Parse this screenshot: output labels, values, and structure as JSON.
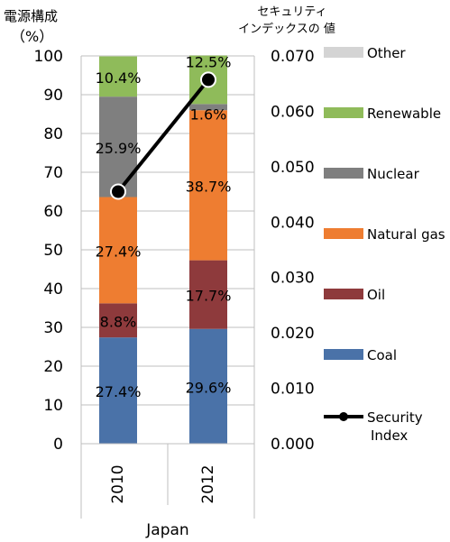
{
  "chart_data": {
    "type": "bar",
    "stacked": true,
    "categories": [
      "2010",
      "2012"
    ],
    "group_label": "Japan",
    "left_axis": {
      "title_line1": "電源構成",
      "title_line2": "（%）",
      "ylim": [
        0,
        100
      ],
      "ticks": [
        "0",
        "10",
        "20",
        "30",
        "40",
        "50",
        "60",
        "70",
        "80",
        "90",
        "100"
      ]
    },
    "right_axis": {
      "title_line1": "セキュリティ",
      "title_line2": "インデックスの 値",
      "ylim": [
        0,
        0.07
      ],
      "ticks": [
        "0.000",
        "0.010",
        "0.020",
        "0.030",
        "0.040",
        "0.050",
        "0.060",
        "0.070"
      ]
    },
    "series": [
      {
        "name": "Coal",
        "color": "#4a72a8",
        "values": [
          27.4,
          29.6
        ],
        "labels": [
          "27.4%",
          "29.6%"
        ]
      },
      {
        "name": "Oil",
        "color": "#8e3a3c",
        "values": [
          8.8,
          17.7
        ],
        "labels": [
          "8.8%",
          "17.7%"
        ]
      },
      {
        "name": "Natural gas",
        "color": "#ee7d31",
        "values": [
          27.4,
          38.7
        ],
        "labels": [
          "27.4%",
          "38.7%"
        ]
      },
      {
        "name": "Nuclear",
        "color": "#7f7f7f",
        "values": [
          25.9,
          1.6
        ],
        "labels": [
          "25.9%",
          "1.6%"
        ]
      },
      {
        "name": "Renewable",
        "color": "#8fbb5a",
        "values": [
          10.4,
          12.5
        ],
        "labels": [
          "10.4%",
          "12.5%"
        ]
      },
      {
        "name": "Other",
        "color": "#d4d4d4",
        "values": [
          0.1,
          0.1
        ],
        "labels": [
          "",
          ""
        ]
      }
    ],
    "line_series": {
      "name": "Security Index",
      "name_line1": "Security",
      "name_line2": "Index",
      "color": "#000000",
      "values": [
        0.0455,
        0.0657
      ]
    },
    "legend_position": "right",
    "legend_order": [
      "Other",
      "Renewable",
      "Nuclear",
      "Natural gas",
      "Oil",
      "Coal"
    ],
    "grid": true
  }
}
